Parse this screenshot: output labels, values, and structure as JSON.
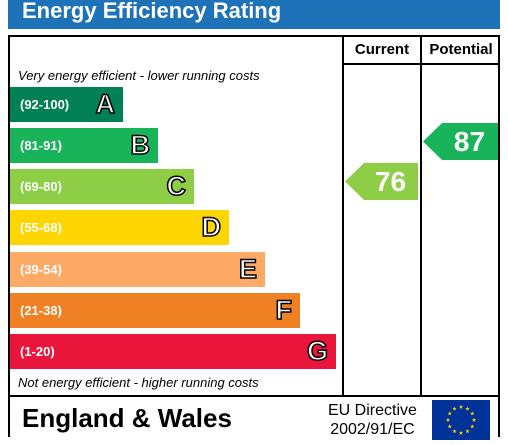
{
  "header": {
    "title": "Energy Efficiency Rating"
  },
  "columns": {
    "current": "Current",
    "potential": "Potential"
  },
  "notes": {
    "top": "Very energy efficient - lower running costs",
    "bottom": "Not energy efficient - higher running costs"
  },
  "bands": [
    {
      "range": "(92-100)",
      "letter": "A",
      "color": "#008054"
    },
    {
      "range": "(81-91)",
      "letter": "B",
      "color": "#19b459"
    },
    {
      "range": "(69-80)",
      "letter": "C",
      "color": "#8dce46"
    },
    {
      "range": "(55-68)",
      "letter": "D",
      "color": "#ffd500"
    },
    {
      "range": "(39-54)",
      "letter": "E",
      "color": "#fcaa65"
    },
    {
      "range": "(21-38)",
      "letter": "F",
      "color": "#ef8023"
    },
    {
      "range": "(1-20)",
      "letter": "G",
      "color": "#e9153b"
    }
  ],
  "ratings": {
    "current": {
      "value": "76",
      "band": "C",
      "color": "#8dce46"
    },
    "potential": {
      "value": "87",
      "band": "B",
      "color": "#19b459"
    }
  },
  "footer": {
    "country": "England & Wales",
    "directive_line1": "EU Directive",
    "directive_line2": "2002/91/EC",
    "flag_icon": "eu-flag-icon"
  }
}
